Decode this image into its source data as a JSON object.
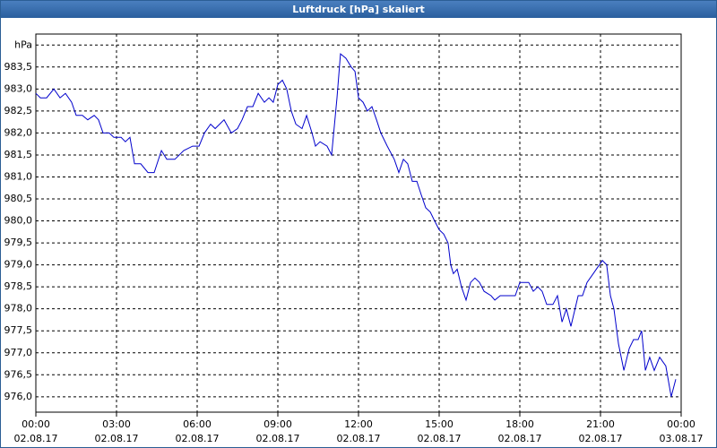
{
  "chart_data": {
    "type": "line",
    "title": "Luftdruck [hPa] skaliert",
    "x": [
      0,
      0.17,
      0.4,
      0.67,
      0.9,
      1.1,
      1.33,
      1.5,
      1.73,
      1.93,
      2.17,
      2.33,
      2.5,
      2.73,
      2.9,
      3.17,
      3.33,
      3.5,
      3.67,
      3.9,
      4.17,
      4.4,
      4.67,
      4.87,
      5.17,
      5.5,
      5.83,
      6.07,
      6.27,
      6.5,
      6.67,
      7,
      7.27,
      7.5,
      7.67,
      7.87,
      8.07,
      8.27,
      8.5,
      8.67,
      8.83,
      9,
      9.17,
      9.33,
      9.5,
      9.67,
      9.9,
      10.07,
      10.27,
      10.4,
      10.57,
      10.83,
      11,
      11.2,
      11.33,
      11.53,
      11.73,
      11.87,
      12,
      12.17,
      12.33,
      12.5,
      12.67,
      12.83,
      13.07,
      13.33,
      13.5,
      13.67,
      13.83,
      14,
      14.17,
      14.33,
      14.5,
      14.67,
      14.83,
      15,
      15.17,
      15.33,
      15.43,
      15.53,
      15.67,
      15.83,
      16,
      16.17,
      16.33,
      16.5,
      16.67,
      16.93,
      17.07,
      17.27,
      17.83,
      18,
      18.33,
      18.5,
      18.67,
      18.83,
      19,
      19.23,
      19.4,
      19.57,
      19.73,
      19.9,
      20.17,
      20.33,
      20.5,
      20.73,
      21.07,
      21.23,
      21.37,
      21.5,
      21.67,
      21.87,
      22.07,
      22.23,
      22.4,
      22.53,
      22.67,
      22.83,
      23,
      23.2,
      23.43,
      23.63,
      23.8
    ],
    "series": [
      {
        "color": "#0000cc",
        "values": [
          982.9,
          982.8,
          982.8,
          983.0,
          982.8,
          982.9,
          982.7,
          982.4,
          982.4,
          982.3,
          982.4,
          982.3,
          982.0,
          982.0,
          981.9,
          981.9,
          981.8,
          981.9,
          981.3,
          981.3,
          981.1,
          981.1,
          981.6,
          981.4,
          981.4,
          981.6,
          981.7,
          981.7,
          982.0,
          982.2,
          982.1,
          982.3,
          982.0,
          982.1,
          982.3,
          982.6,
          982.6,
          982.9,
          982.7,
          982.8,
          982.7,
          983.1,
          983.2,
          983.0,
          982.5,
          982.2,
          982.1,
          982.4,
          982.0,
          981.7,
          981.8,
          981.7,
          981.5,
          982.8,
          983.8,
          983.7,
          983.5,
          983.4,
          982.8,
          982.7,
          982.5,
          982.6,
          982.3,
          982.0,
          981.7,
          981.4,
          981.1,
          981.4,
          981.3,
          980.9,
          980.9,
          980.6,
          980.3,
          980.2,
          980.0,
          979.8,
          979.7,
          979.5,
          979.0,
          978.8,
          978.9,
          978.5,
          978.2,
          978.6,
          978.7,
          978.6,
          978.4,
          978.3,
          978.2,
          978.3,
          978.3,
          978.6,
          978.6,
          978.4,
          978.5,
          978.4,
          978.1,
          978.1,
          978.3,
          977.7,
          978.0,
          977.6,
          978.3,
          978.3,
          978.6,
          978.8,
          979.1,
          979.0,
          978.3,
          978.0,
          977.2,
          976.6,
          977.1,
          977.3,
          977.3,
          977.5,
          976.6,
          976.9,
          976.6,
          976.9,
          976.7,
          976.0,
          976.4
        ]
      }
    ],
    "xlim": [
      0,
      24
    ],
    "xticks": [
      {
        "value": 0,
        "label": "00:00"
      },
      {
        "value": 3,
        "label": "03:00"
      },
      {
        "value": 6,
        "label": "06:00"
      },
      {
        "value": 9,
        "label": "09:00"
      },
      {
        "value": 12,
        "label": "12:00"
      },
      {
        "value": 15,
        "label": "15:00"
      },
      {
        "value": 18,
        "label": "18:00"
      },
      {
        "value": 21,
        "label": "21:00"
      },
      {
        "value": 24,
        "label": "00:00"
      }
    ],
    "xtick_dates": [
      "02.08.17",
      "02.08.17",
      "02.08.17",
      "02.08.17",
      "02.08.17",
      "02.08.17",
      "02.08.17",
      "02.08.17",
      "03.08.17"
    ],
    "ylim": [
      975.65,
      984.25
    ],
    "yticks": [
      {
        "value": 976,
        "label": "976,0"
      },
      {
        "value": 976.5,
        "label": "976,5"
      },
      {
        "value": 977,
        "label": "977,0"
      },
      {
        "value": 977.5,
        "label": "977,5"
      },
      {
        "value": 978,
        "label": "978,0"
      },
      {
        "value": 978.5,
        "label": "978,5"
      },
      {
        "value": 979,
        "label": "979,0"
      },
      {
        "value": 979.5,
        "label": "979,5"
      },
      {
        "value": 980,
        "label": "980,0"
      },
      {
        "value": 980.5,
        "label": "980,5"
      },
      {
        "value": 981,
        "label": "981,0"
      },
      {
        "value": 981.5,
        "label": "981,5"
      },
      {
        "value": 982,
        "label": "982,0"
      },
      {
        "value": 982.5,
        "label": "982,5"
      },
      {
        "value": 983,
        "label": "983,0"
      },
      {
        "value": 983.5,
        "label": "983,5"
      },
      {
        "value": 984,
        "label": "hPa"
      }
    ],
    "grid": true
  }
}
